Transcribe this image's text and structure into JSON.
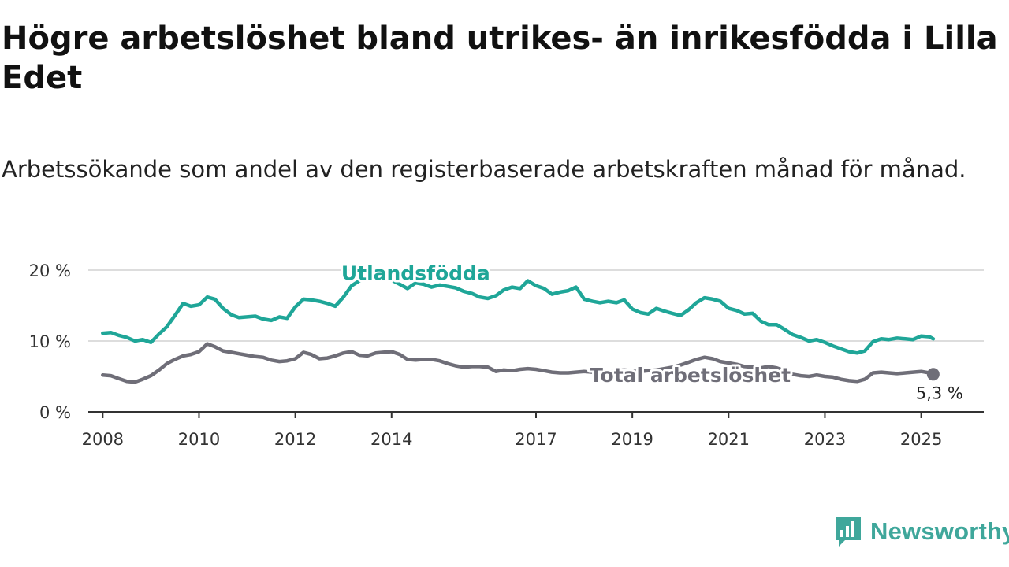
{
  "header": {
    "title": "Högre arbetslöshet bland utrikes- än inrikesfödda i Lilla Edet",
    "subtitle": "Arbetssökande som andel av den registerbaserade arbetskraften månad för månad."
  },
  "brand": {
    "name": "Newsworthy",
    "color": "#3fa79b"
  },
  "chart_data": {
    "type": "line",
    "title": "Högre arbetslöshet bland utrikes- än inrikesfödda i Lilla Edet",
    "subtitle": "Arbetssökande som andel av den registerbaserade arbetskraften månad för månad.",
    "xlabel": "",
    "ylabel": "",
    "xlim": [
      2007.7,
      2026.3
    ],
    "ylim": [
      0,
      20
    ],
    "grid": true,
    "x_ticks": [
      2008,
      2010,
      2012,
      2014,
      2017,
      2019,
      2021,
      2023,
      2025
    ],
    "x_tick_labels": [
      "2008",
      "2010",
      "2012",
      "2014",
      "2017",
      "2019",
      "2021",
      "2023",
      "2025"
    ],
    "y_ticks": [
      0,
      10,
      20
    ],
    "y_tick_labels": [
      "0 %",
      "10 %",
      "20 %"
    ],
    "end_label": "5,3 %",
    "series": [
      {
        "name": "Utlandsfödda",
        "color": "#1fa698",
        "points": [
          [
            2008.0,
            11.1
          ],
          [
            2008.17,
            11.2
          ],
          [
            2008.33,
            10.8
          ],
          [
            2008.5,
            10.5
          ],
          [
            2008.67,
            10.0
          ],
          [
            2008.83,
            10.2
          ],
          [
            2009.0,
            9.8
          ],
          [
            2009.17,
            11.0
          ],
          [
            2009.33,
            12.0
          ],
          [
            2009.5,
            13.6
          ],
          [
            2009.67,
            15.3
          ],
          [
            2009.83,
            14.9
          ],
          [
            2010.0,
            15.1
          ],
          [
            2010.17,
            16.2
          ],
          [
            2010.33,
            15.9
          ],
          [
            2010.5,
            14.6
          ],
          [
            2010.67,
            13.7
          ],
          [
            2010.83,
            13.3
          ],
          [
            2011.0,
            13.4
          ],
          [
            2011.17,
            13.5
          ],
          [
            2011.33,
            13.1
          ],
          [
            2011.5,
            12.9
          ],
          [
            2011.67,
            13.4
          ],
          [
            2011.83,
            13.2
          ],
          [
            2012.0,
            14.8
          ],
          [
            2012.17,
            15.9
          ],
          [
            2012.33,
            15.8
          ],
          [
            2012.5,
            15.6
          ],
          [
            2012.67,
            15.3
          ],
          [
            2012.83,
            14.9
          ],
          [
            2013.0,
            16.2
          ],
          [
            2013.17,
            17.8
          ],
          [
            2013.33,
            18.5
          ],
          [
            2013.5,
            18.9
          ],
          [
            2013.67,
            19.0
          ],
          [
            2013.83,
            19.1
          ],
          [
            2014.0,
            18.6
          ],
          [
            2014.17,
            18.0
          ],
          [
            2014.33,
            17.4
          ],
          [
            2014.5,
            18.2
          ],
          [
            2014.67,
            18.0
          ],
          [
            2014.83,
            17.6
          ],
          [
            2015.0,
            17.9
          ],
          [
            2015.17,
            17.7
          ],
          [
            2015.33,
            17.5
          ],
          [
            2015.5,
            17.0
          ],
          [
            2015.67,
            16.7
          ],
          [
            2015.83,
            16.2
          ],
          [
            2016.0,
            16.0
          ],
          [
            2016.17,
            16.4
          ],
          [
            2016.33,
            17.2
          ],
          [
            2016.5,
            17.6
          ],
          [
            2016.67,
            17.4
          ],
          [
            2016.83,
            18.5
          ],
          [
            2017.0,
            17.8
          ],
          [
            2017.17,
            17.4
          ],
          [
            2017.33,
            16.6
          ],
          [
            2017.5,
            16.9
          ],
          [
            2017.67,
            17.1
          ],
          [
            2017.83,
            17.6
          ],
          [
            2018.0,
            15.9
          ],
          [
            2018.17,
            15.6
          ],
          [
            2018.33,
            15.4
          ],
          [
            2018.5,
            15.6
          ],
          [
            2018.67,
            15.4
          ],
          [
            2018.83,
            15.8
          ],
          [
            2019.0,
            14.5
          ],
          [
            2019.17,
            14.0
          ],
          [
            2019.33,
            13.8
          ],
          [
            2019.5,
            14.6
          ],
          [
            2019.67,
            14.2
          ],
          [
            2019.83,
            13.9
          ],
          [
            2020.0,
            13.6
          ],
          [
            2020.17,
            14.4
          ],
          [
            2020.33,
            15.4
          ],
          [
            2020.5,
            16.1
          ],
          [
            2020.67,
            15.9
          ],
          [
            2020.83,
            15.6
          ],
          [
            2021.0,
            14.6
          ],
          [
            2021.17,
            14.3
          ],
          [
            2021.33,
            13.8
          ],
          [
            2021.5,
            13.9
          ],
          [
            2021.67,
            12.8
          ],
          [
            2021.83,
            12.3
          ],
          [
            2022.0,
            12.3
          ],
          [
            2022.17,
            11.6
          ],
          [
            2022.33,
            10.9
          ],
          [
            2022.5,
            10.5
          ],
          [
            2022.67,
            10.0
          ],
          [
            2022.83,
            10.2
          ],
          [
            2023.0,
            9.8
          ],
          [
            2023.17,
            9.3
          ],
          [
            2023.33,
            8.9
          ],
          [
            2023.5,
            8.5
          ],
          [
            2023.67,
            8.3
          ],
          [
            2023.83,
            8.6
          ],
          [
            2024.0,
            9.9
          ],
          [
            2024.17,
            10.3
          ],
          [
            2024.33,
            10.2
          ],
          [
            2024.5,
            10.4
          ],
          [
            2024.67,
            10.3
          ],
          [
            2024.83,
            10.2
          ],
          [
            2025.0,
            10.7
          ],
          [
            2025.17,
            10.6
          ],
          [
            2025.25,
            10.3
          ]
        ]
      },
      {
        "name": "Total arbetslöshet",
        "color": "#6f6e78",
        "points": [
          [
            2008.0,
            5.2
          ],
          [
            2008.17,
            5.1
          ],
          [
            2008.33,
            4.7
          ],
          [
            2008.5,
            4.3
          ],
          [
            2008.67,
            4.2
          ],
          [
            2008.83,
            4.6
          ],
          [
            2009.0,
            5.1
          ],
          [
            2009.17,
            5.9
          ],
          [
            2009.33,
            6.8
          ],
          [
            2009.5,
            7.4
          ],
          [
            2009.67,
            7.9
          ],
          [
            2009.83,
            8.1
          ],
          [
            2010.0,
            8.5
          ],
          [
            2010.17,
            9.6
          ],
          [
            2010.33,
            9.2
          ],
          [
            2010.5,
            8.6
          ],
          [
            2010.67,
            8.4
          ],
          [
            2010.83,
            8.2
          ],
          [
            2011.0,
            8.0
          ],
          [
            2011.17,
            7.8
          ],
          [
            2011.33,
            7.7
          ],
          [
            2011.5,
            7.3
          ],
          [
            2011.67,
            7.1
          ],
          [
            2011.83,
            7.2
          ],
          [
            2012.0,
            7.5
          ],
          [
            2012.17,
            8.4
          ],
          [
            2012.33,
            8.1
          ],
          [
            2012.5,
            7.5
          ],
          [
            2012.67,
            7.6
          ],
          [
            2012.83,
            7.9
          ],
          [
            2013.0,
            8.3
          ],
          [
            2013.17,
            8.5
          ],
          [
            2013.33,
            8.0
          ],
          [
            2013.5,
            7.9
          ],
          [
            2013.67,
            8.3
          ],
          [
            2013.83,
            8.4
          ],
          [
            2014.0,
            8.5
          ],
          [
            2014.17,
            8.1
          ],
          [
            2014.33,
            7.4
          ],
          [
            2014.5,
            7.3
          ],
          [
            2014.67,
            7.4
          ],
          [
            2014.83,
            7.4
          ],
          [
            2015.0,
            7.2
          ],
          [
            2015.17,
            6.8
          ],
          [
            2015.33,
            6.5
          ],
          [
            2015.5,
            6.3
          ],
          [
            2015.67,
            6.4
          ],
          [
            2015.83,
            6.4
          ],
          [
            2016.0,
            6.3
          ],
          [
            2016.17,
            5.7
          ],
          [
            2016.33,
            5.9
          ],
          [
            2016.5,
            5.8
          ],
          [
            2016.67,
            6.0
          ],
          [
            2016.83,
            6.1
          ],
          [
            2017.0,
            6.0
          ],
          [
            2017.17,
            5.8
          ],
          [
            2017.33,
            5.6
          ],
          [
            2017.5,
            5.5
          ],
          [
            2017.67,
            5.5
          ],
          [
            2017.83,
            5.6
          ],
          [
            2018.0,
            5.7
          ],
          [
            2018.17,
            5.6
          ],
          [
            2018.33,
            5.5
          ],
          [
            2018.5,
            5.6
          ],
          [
            2018.67,
            5.8
          ],
          [
            2018.83,
            5.9
          ],
          [
            2019.0,
            5.8
          ],
          [
            2019.17,
            5.7
          ],
          [
            2019.33,
            5.8
          ],
          [
            2019.5,
            5.9
          ],
          [
            2019.67,
            6.1
          ],
          [
            2019.83,
            6.3
          ],
          [
            2020.0,
            6.6
          ],
          [
            2020.17,
            7.0
          ],
          [
            2020.33,
            7.4
          ],
          [
            2020.5,
            7.7
          ],
          [
            2020.67,
            7.5
          ],
          [
            2020.83,
            7.1
          ],
          [
            2021.0,
            6.9
          ],
          [
            2021.17,
            6.7
          ],
          [
            2021.33,
            6.4
          ],
          [
            2021.5,
            6.3
          ],
          [
            2021.67,
            6.2
          ],
          [
            2021.83,
            6.4
          ],
          [
            2022.0,
            6.2
          ],
          [
            2022.17,
            5.8
          ],
          [
            2022.33,
            5.3
          ],
          [
            2022.5,
            5.1
          ],
          [
            2022.67,
            5.0
          ],
          [
            2022.83,
            5.2
          ],
          [
            2023.0,
            5.0
          ],
          [
            2023.17,
            4.9
          ],
          [
            2023.33,
            4.6
          ],
          [
            2023.5,
            4.4
          ],
          [
            2023.67,
            4.3
          ],
          [
            2023.83,
            4.6
          ],
          [
            2024.0,
            5.5
          ],
          [
            2024.17,
            5.6
          ],
          [
            2024.33,
            5.5
          ],
          [
            2024.5,
            5.4
          ],
          [
            2024.67,
            5.5
          ],
          [
            2024.83,
            5.6
          ],
          [
            2025.0,
            5.7
          ],
          [
            2025.17,
            5.5
          ],
          [
            2025.25,
            5.3
          ]
        ]
      }
    ]
  }
}
